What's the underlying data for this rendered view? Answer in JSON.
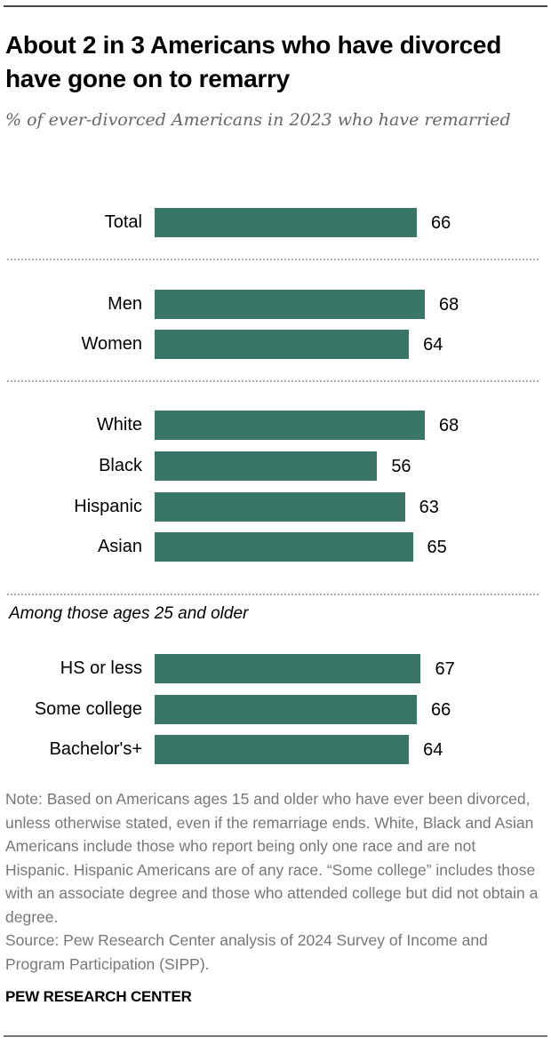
{
  "chart_data": {
    "type": "bar",
    "orientation": "horizontal",
    "title": "About 2 in 3 Americans who have divorced have gone on to remarry",
    "subtitle": "% of ever-divorced Americans in 2023 who have remarried",
    "xlim": [
      0,
      100
    ],
    "bar_color": "#3a7668",
    "groups": [
      {
        "heading": "",
        "categories": [
          "Total"
        ],
        "values": [
          66
        ]
      },
      {
        "heading": "",
        "categories": [
          "Men",
          "Women"
        ],
        "values": [
          68,
          64
        ]
      },
      {
        "heading": "",
        "categories": [
          "White",
          "Black",
          "Hispanic",
          "Asian"
        ],
        "values": [
          68,
          56,
          63,
          65
        ]
      },
      {
        "heading": "Among those ages 25 and older",
        "categories": [
          "HS or less",
          "Some college",
          "Bachelor's+"
        ],
        "values": [
          67,
          66,
          64
        ]
      }
    ]
  },
  "header": {
    "title": "About 2 in 3 Americans who have divorced have gone on to remarry",
    "subtitle": "% of ever-divorced Americans in 2023 who have remarried"
  },
  "group_note": "Among those ages 25 and older",
  "footer": {
    "note": "Note: Based on Americans ages 15 and older who have ever been divorced, unless otherwise stated, even if the remarriage ends. White, Black and Asian Americans include those who report being only one race and are not Hispanic. Hispanic Americans are of any race. “Some college” includes those with an associate degree and those who attended college but did not obtain a degree.",
    "source": "Source: Pew Research Center analysis of 2024 Survey of Income and Program Participation (SIPP).",
    "brand": "PEW RESEARCH CENTER"
  }
}
